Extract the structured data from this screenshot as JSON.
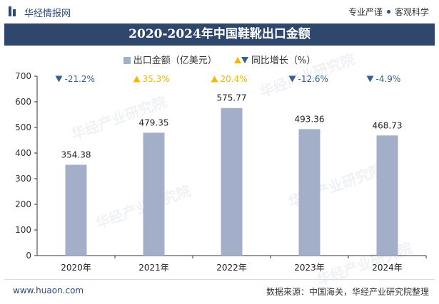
{
  "header": {
    "brand": "华经情报网",
    "tag1": "专业严谨",
    "tag2": "客观科学"
  },
  "title": "2020-2024年中国鞋靴出口金额",
  "legend": {
    "bar_label": "出口金额（亿美元）",
    "growth_label": "同比增长（%）"
  },
  "watermark": "华经产业研究院",
  "footer": {
    "website": "www.huaon.com",
    "source": "数据来源：中国海关，华经产业研究院整理"
  },
  "colors": {
    "bar": "#a3afc9",
    "up": "#f0b800",
    "down": "#35628a",
    "title_bg": "#30476d"
  },
  "chart_data": {
    "type": "bar",
    "title": "2020-2024年中国鞋靴出口金额",
    "categories": [
      "2020年",
      "2021年",
      "2022年",
      "2023年",
      "2024年"
    ],
    "series": [
      {
        "name": "出口金额（亿美元）",
        "values": [
          354.38,
          479.35,
          575.77,
          493.36,
          468.73
        ]
      },
      {
        "name": "同比增长（%）",
        "values": [
          -21.2,
          35.3,
          20.4,
          -12.6,
          -4.9
        ]
      }
    ],
    "value_labels": [
      "354.38",
      "479.35",
      "575.77",
      "493.36",
      "468.73"
    ],
    "growth_labels": [
      "-21.2%",
      "35.3%",
      "20.4%",
      "-12.6%",
      "-4.9%"
    ],
    "ylim": [
      0,
      700
    ],
    "yticks": [
      "0",
      "100",
      "200",
      "300",
      "400",
      "500",
      "600",
      "700"
    ],
    "grid": false,
    "legend_position": "top-center"
  }
}
